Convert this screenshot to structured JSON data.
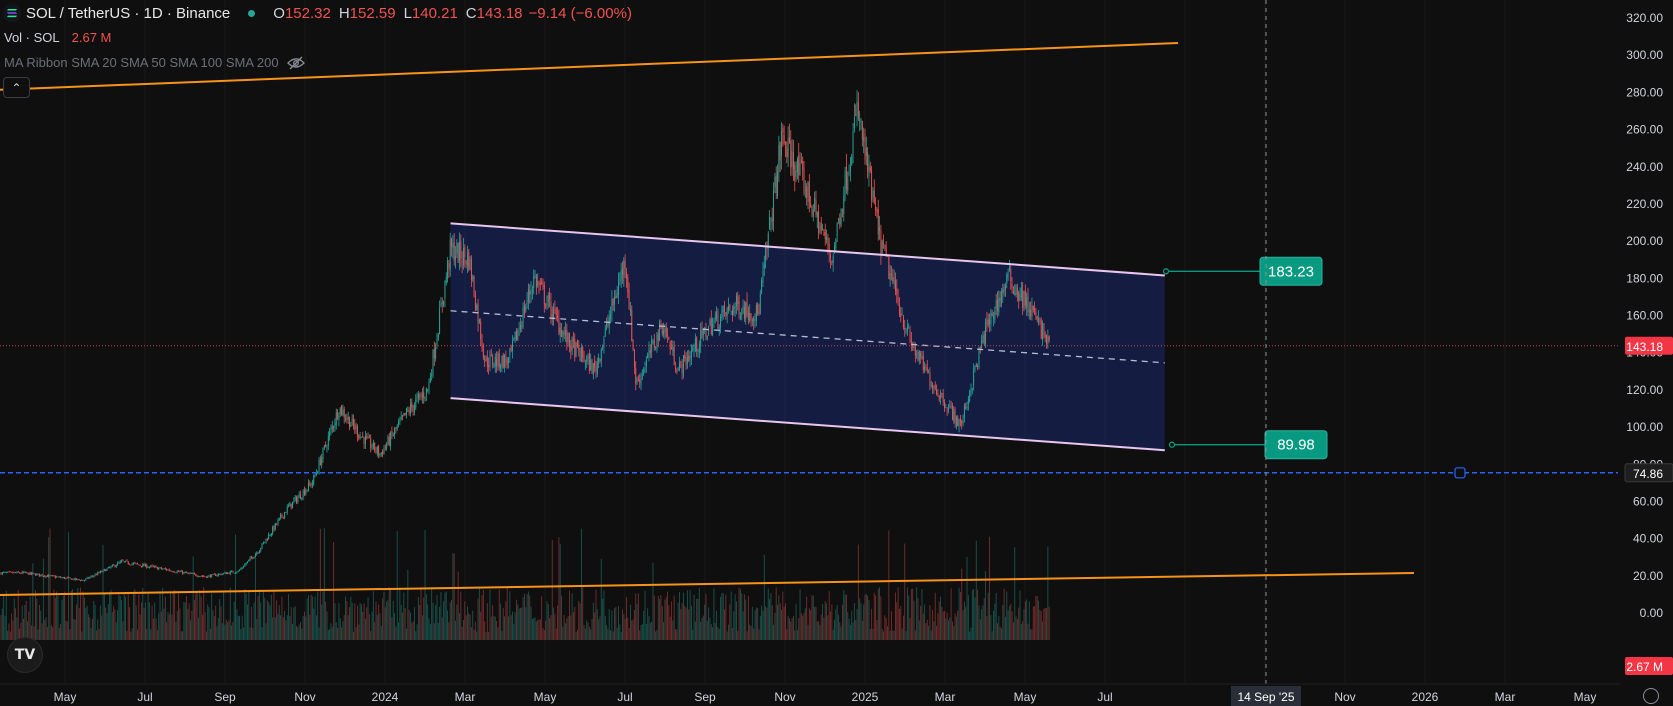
{
  "header": {
    "symbol": "SOL / TetherUS · 1D · Binance",
    "open_label": "O",
    "open": "152.32",
    "high_label": "H",
    "high": "152.59",
    "low_label": "L",
    "low": "140.21",
    "close_label": "C",
    "close": "143.18",
    "change": "−9.14 (−6.00%)"
  },
  "volume_legend": {
    "label": "Vol · SOL",
    "value": "2.67 M"
  },
  "ma_legend": {
    "label": "MA Ribbon SMA 20 SMA 50 SMA 100 SMA 200"
  },
  "colors": {
    "up": "#26a69a",
    "down": "#ef5350",
    "trendline": "#f7931a",
    "channel_fill": "#1a2a6b",
    "channel_line": "#e8c6f0",
    "horizontal_line": "#2962ff",
    "price_tag": "#f23645",
    "target_tag": "#089981"
  },
  "chart_data": {
    "type": "candlestick",
    "price_axis": {
      "min": 0,
      "max": 320,
      "ticks": [
        "320.00",
        "300.00",
        "280.00",
        "260.00",
        "240.00",
        "220.00",
        "200.00",
        "180.00",
        "160.00",
        "140.00",
        "120.00",
        "100.00",
        "80.00",
        "60.00",
        "40.00",
        "20.00",
        "0.00"
      ]
    },
    "time_axis": [
      "May",
      "Jul",
      "Sep",
      "Nov",
      "2024",
      "Mar",
      "May",
      "Jul",
      "Sep",
      "Nov",
      "2025",
      "Mar",
      "May",
      "Jul",
      "14 Sep '25",
      "Nov",
      "2026",
      "Mar",
      "May"
    ],
    "price_path": [
      [
        "2023-04-01",
        21
      ],
      [
        "2023-05-01",
        21
      ],
      [
        "2023-06-15",
        17
      ],
      [
        "2023-07-14",
        27
      ],
      [
        "2023-08-15",
        23
      ],
      [
        "2023-09-15",
        19
      ],
      [
        "2023-10-10",
        22
      ],
      [
        "2023-10-25",
        33
      ],
      [
        "2023-11-15",
        55
      ],
      [
        "2023-12-05",
        70
      ],
      [
        "2023-12-25",
        110
      ],
      [
        "2024-01-10",
        95
      ],
      [
        "2024-01-25",
        85
      ],
      [
        "2024-02-15",
        108
      ],
      [
        "2024-03-01",
        120
      ],
      [
        "2024-03-18",
        195
      ],
      [
        "2024-04-01",
        190
      ],
      [
        "2024-04-13",
        135
      ],
      [
        "2024-05-01",
        135
      ],
      [
        "2024-05-20",
        180
      ],
      [
        "2024-06-15",
        145
      ],
      [
        "2024-07-05",
        130
      ],
      [
        "2024-07-28",
        190
      ],
      [
        "2024-08-05",
        122
      ],
      [
        "2024-08-25",
        155
      ],
      [
        "2024-09-06",
        130
      ],
      [
        "2024-10-01",
        155
      ],
      [
        "2024-10-20",
        165
      ],
      [
        "2024-11-05",
        160
      ],
      [
        "2024-11-23",
        255
      ],
      [
        "2024-12-10",
        230
      ],
      [
        "2024-12-31",
        190
      ],
      [
        "2025-01-19",
        270
      ],
      [
        "2025-02-05",
        200
      ],
      [
        "2025-02-28",
        145
      ],
      [
        "2025-03-15",
        125
      ],
      [
        "2025-04-07",
        100
      ],
      [
        "2025-04-25",
        150
      ],
      [
        "2025-05-13",
        180
      ],
      [
        "2025-06-01",
        160
      ],
      [
        "2025-06-13",
        143.18
      ]
    ],
    "last_price": "143.18",
    "volume_last": "2.67 M",
    "trendlines": [
      {
        "name": "upper-trendline",
        "from": [
          "2023-01-01",
          278
        ],
        "to": [
          "2025-09-18",
          306
        ]
      },
      {
        "name": "lower-trendline",
        "from": [
          "2023-01-01",
          8
        ],
        "to": [
          "2026-03-15",
          21
        ]
      }
    ],
    "parallel_channel": {
      "upper": {
        "from": [
          "2024-03-18",
          209
        ],
        "to": [
          "2025-09-08",
          181
        ]
      },
      "middle": {
        "from": [
          "2024-03-18",
          162
        ],
        "to": [
          "2025-09-08",
          134
        ]
      },
      "lower": {
        "from": [
          "2024-03-18",
          115
        ],
        "to": [
          "2025-09-08",
          87
        ]
      }
    },
    "horizontal_line": {
      "price": "74.86"
    },
    "target_labels": [
      {
        "name": "upper-target",
        "value": "183.23"
      },
      {
        "name": "lower-target",
        "value": "89.98"
      }
    ],
    "crosshair_date": "14 Sep '25"
  }
}
